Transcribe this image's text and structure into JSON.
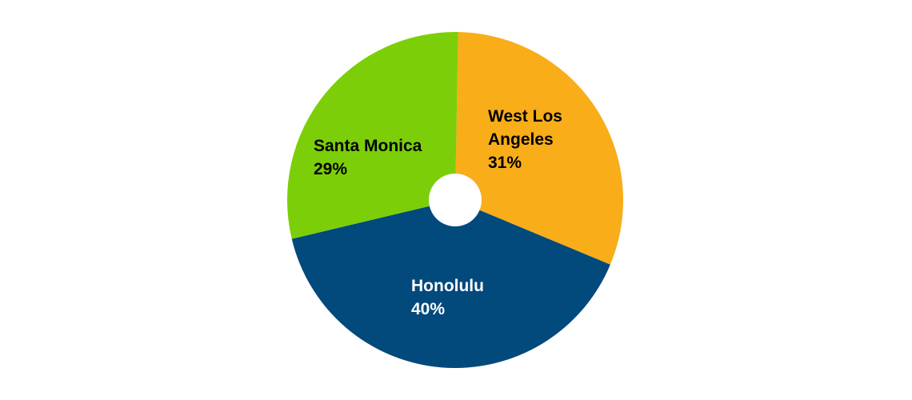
{
  "chart_data": {
    "type": "pie",
    "title": "",
    "slices": [
      {
        "name": "West Los Angeles",
        "value": 31,
        "percent_label": "31%",
        "label_lines": [
          "West Los",
          "Angeles"
        ],
        "color": "#f8ad19",
        "label_color": "#000000"
      },
      {
        "name": "Honolulu",
        "value": 40,
        "percent_label": "40%",
        "label_lines": [
          "Honolulu"
        ],
        "color": "#02497c",
        "label_color": "#ffffff"
      },
      {
        "name": "Santa Monica",
        "value": 29,
        "percent_label": "29%",
        "label_lines": [
          "Santa Monica"
        ],
        "color": "#7ccf08",
        "label_color": "#000000"
      }
    ],
    "start_angle": "just right of 12 o'clock",
    "direction": "clockwise",
    "hole": "small white center",
    "legend": "none",
    "background": "#ffffff"
  }
}
